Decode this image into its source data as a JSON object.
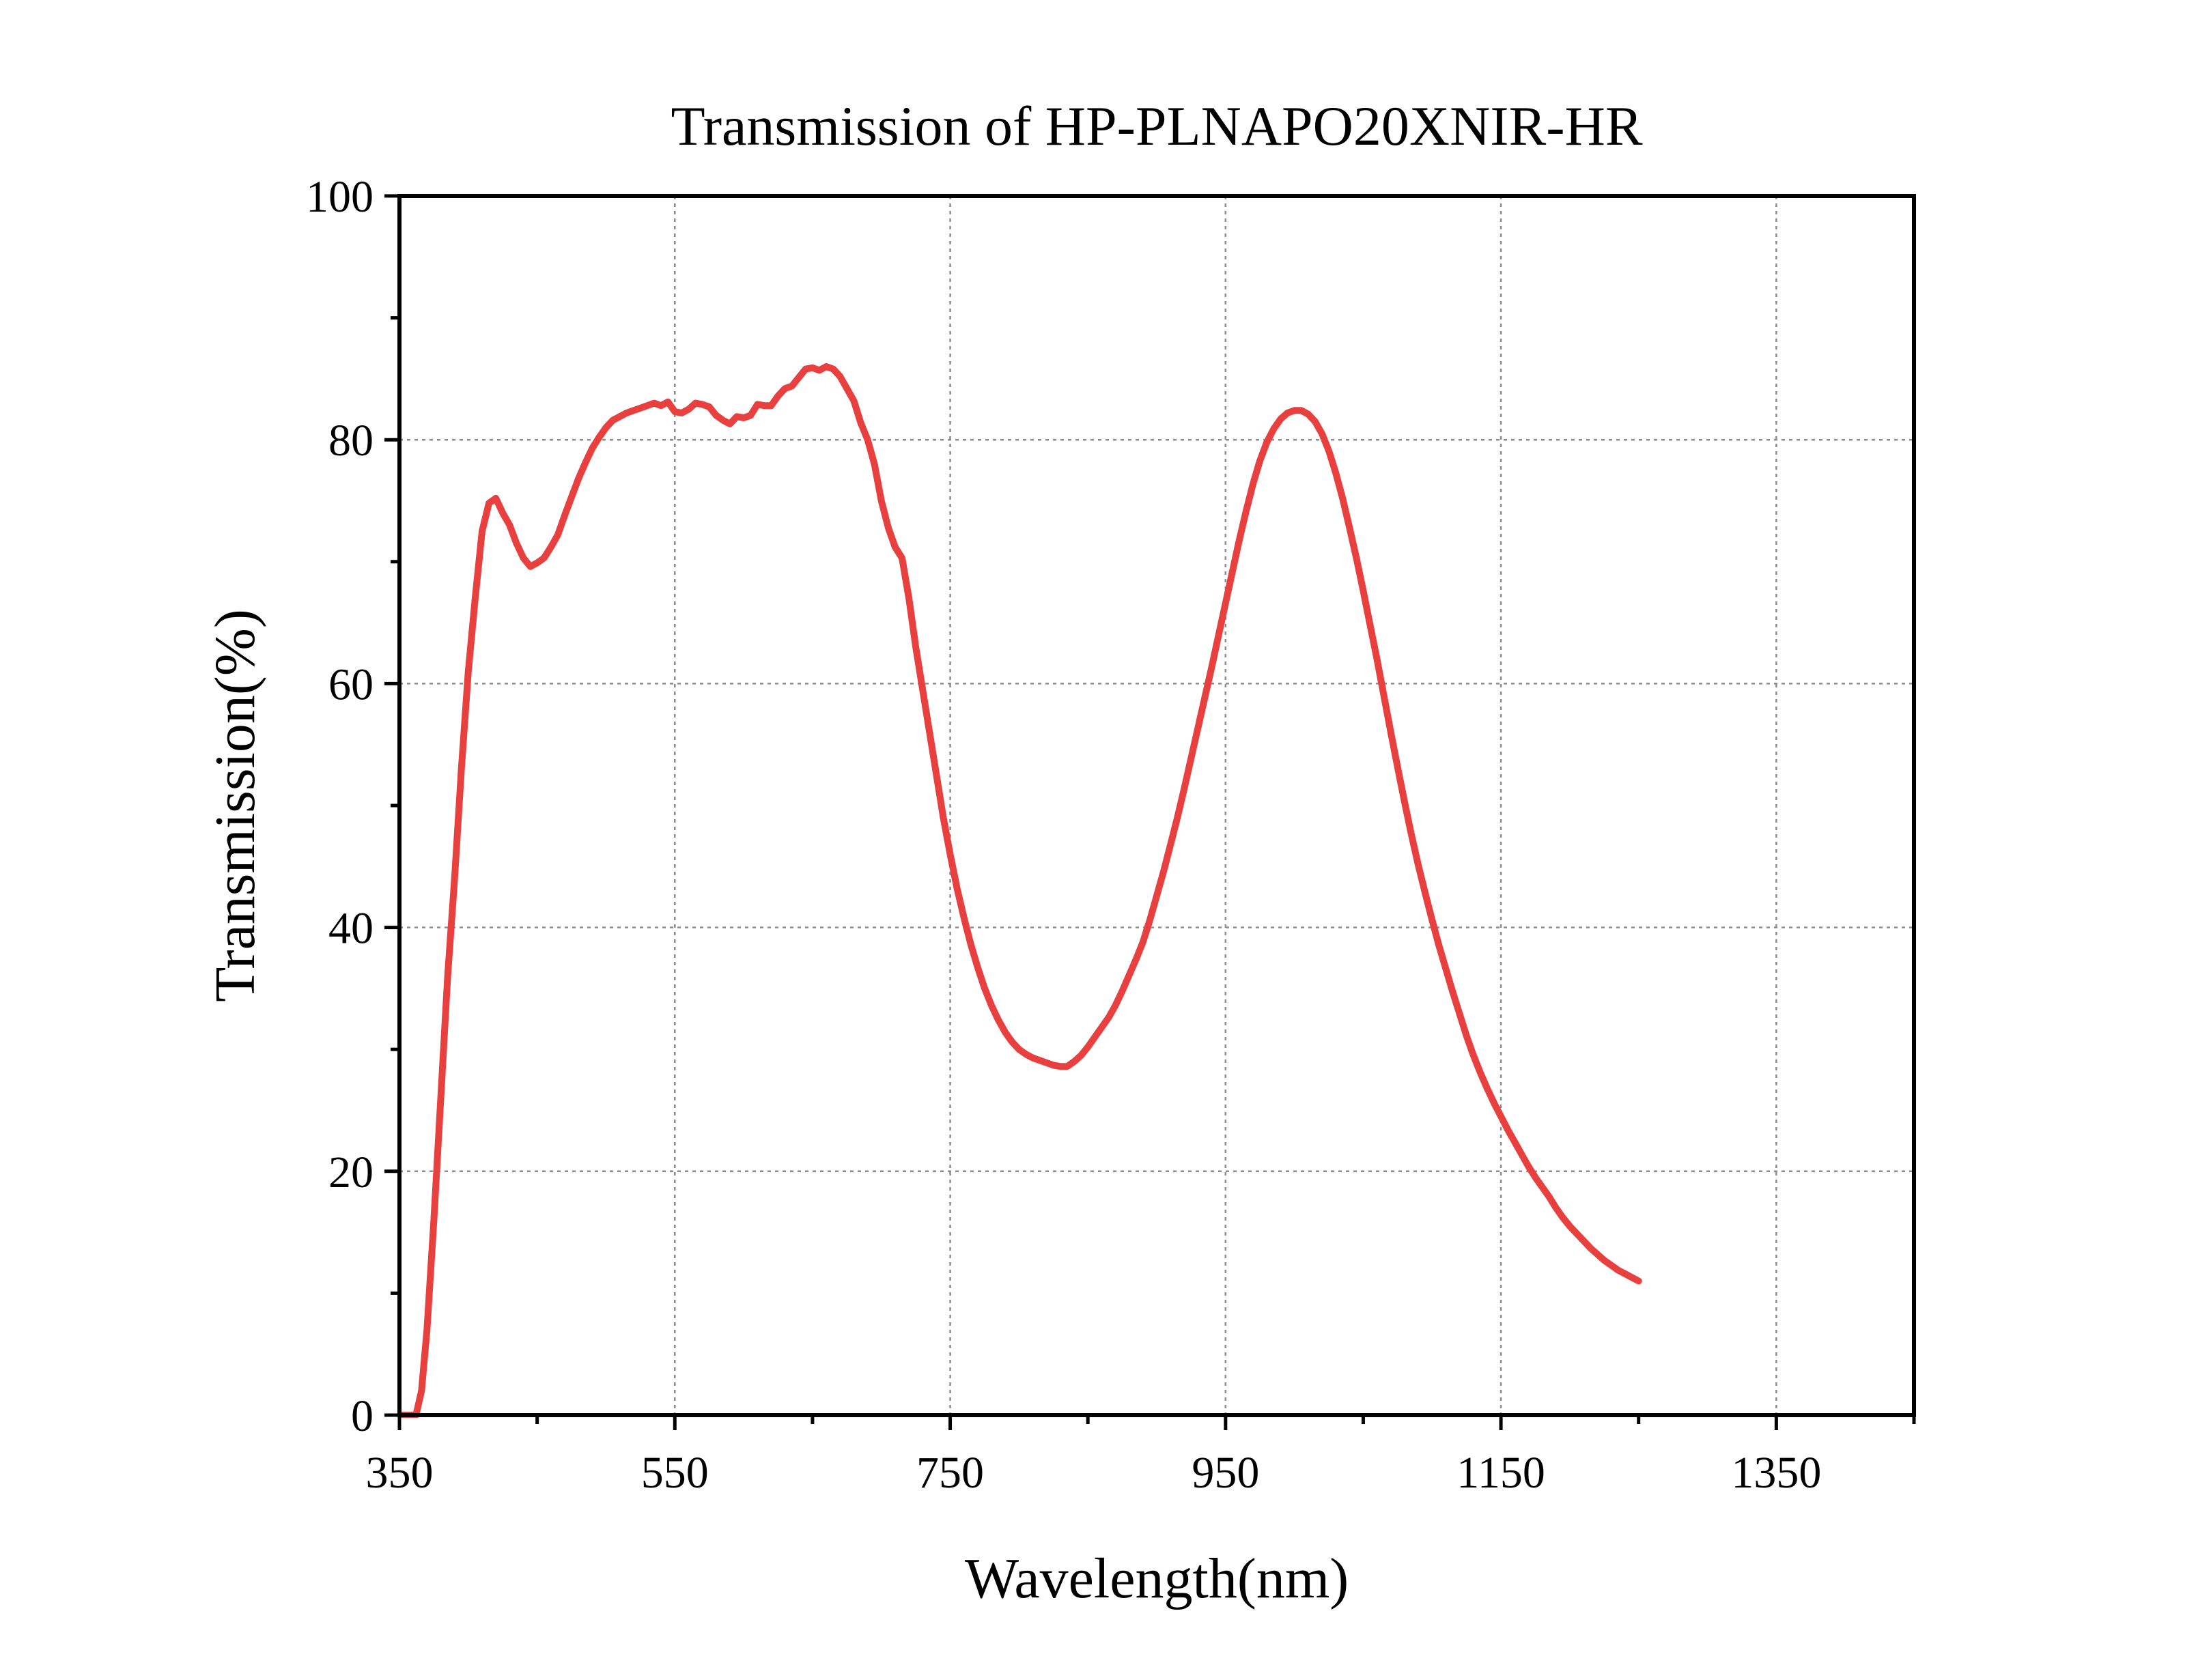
{
  "chart_data": {
    "type": "line",
    "title": "Transmission of HP-PLNAPO20XNIR-HR",
    "xlabel": "Wavelength(nm)",
    "ylabel": "Transmission(%)",
    "xlim": [
      350,
      1450
    ],
    "ylim": [
      0,
      100
    ],
    "xticks": [
      350,
      550,
      750,
      950,
      1150,
      1350
    ],
    "xticks_minor": [
      450,
      650,
      850,
      1050,
      1250,
      1450
    ],
    "yticks": [
      0,
      20,
      40,
      60,
      80,
      100
    ],
    "yticks_minor": [
      10,
      30,
      50,
      70,
      90
    ],
    "grid": true,
    "legend": "none",
    "series": [
      {
        "color": "#e8403e",
        "points": [
          [
            350,
            0
          ],
          [
            362,
            0
          ],
          [
            366,
            2
          ],
          [
            370,
            7
          ],
          [
            375,
            16
          ],
          [
            380,
            26
          ],
          [
            385,
            36
          ],
          [
            390,
            44
          ],
          [
            395,
            53
          ],
          [
            400,
            61
          ],
          [
            405,
            67
          ],
          [
            410,
            72.5
          ],
          [
            415,
            74.8
          ],
          [
            420,
            75.2
          ],
          [
            425,
            74
          ],
          [
            430,
            73
          ],
          [
            435,
            71.5
          ],
          [
            440,
            70.3
          ],
          [
            445,
            69.6
          ],
          [
            450,
            69.9
          ],
          [
            455,
            70.3
          ],
          [
            460,
            71.2
          ],
          [
            465,
            72.2
          ],
          [
            470,
            73.8
          ],
          [
            475,
            75.3
          ],
          [
            480,
            76.8
          ],
          [
            485,
            78.1
          ],
          [
            490,
            79.3
          ],
          [
            495,
            80.2
          ],
          [
            500,
            81
          ],
          [
            505,
            81.6
          ],
          [
            510,
            81.9
          ],
          [
            515,
            82.2
          ],
          [
            520,
            82.4
          ],
          [
            525,
            82.6
          ],
          [
            530,
            82.8
          ],
          [
            535,
            83
          ],
          [
            540,
            82.8
          ],
          [
            545,
            83.1
          ],
          [
            550,
            82.3
          ],
          [
            555,
            82.2
          ],
          [
            560,
            82.5
          ],
          [
            565,
            83
          ],
          [
            570,
            82.9
          ],
          [
            575,
            82.7
          ],
          [
            580,
            82
          ],
          [
            585,
            81.6
          ],
          [
            590,
            81.3
          ],
          [
            595,
            81.9
          ],
          [
            600,
            81.8
          ],
          [
            605,
            82
          ],
          [
            610,
            82.9
          ],
          [
            615,
            82.8
          ],
          [
            620,
            82.8
          ],
          [
            625,
            83.6
          ],
          [
            630,
            84.2
          ],
          [
            635,
            84.4
          ],
          [
            640,
            85.1
          ],
          [
            645,
            85.8
          ],
          [
            650,
            85.9
          ],
          [
            655,
            85.7
          ],
          [
            660,
            86
          ],
          [
            665,
            85.8
          ],
          [
            670,
            85.2
          ],
          [
            675,
            84.2
          ],
          [
            680,
            83.2
          ],
          [
            685,
            81.4
          ],
          [
            690,
            80
          ],
          [
            695,
            78
          ],
          [
            700,
            75
          ],
          [
            705,
            72.8
          ],
          [
            710,
            71.2
          ],
          [
            715,
            70.3
          ],
          [
            720,
            67
          ],
          [
            725,
            63
          ],
          [
            730,
            59.5
          ],
          [
            735,
            56
          ],
          [
            740,
            52.5
          ],
          [
            745,
            49
          ],
          [
            750,
            46
          ],
          [
            755,
            43.2
          ],
          [
            760,
            40.8
          ],
          [
            765,
            38.6
          ],
          [
            770,
            36.7
          ],
          [
            775,
            35
          ],
          [
            780,
            33.6
          ],
          [
            785,
            32.4
          ],
          [
            790,
            31.4
          ],
          [
            795,
            30.6
          ],
          [
            800,
            30
          ],
          [
            805,
            29.6
          ],
          [
            810,
            29.3
          ],
          [
            815,
            29.1
          ],
          [
            820,
            28.9
          ],
          [
            825,
            28.7
          ],
          [
            830,
            28.6
          ],
          [
            835,
            28.6
          ],
          [
            840,
            29
          ],
          [
            845,
            29.5
          ],
          [
            850,
            30.2
          ],
          [
            855,
            31
          ],
          [
            860,
            31.8
          ],
          [
            865,
            32.6
          ],
          [
            870,
            33.6
          ],
          [
            875,
            34.8
          ],
          [
            880,
            36.1
          ],
          [
            885,
            37.4
          ],
          [
            890,
            38.8
          ],
          [
            895,
            40.6
          ],
          [
            900,
            42.6
          ],
          [
            905,
            44.6
          ],
          [
            910,
            46.8
          ],
          [
            915,
            49
          ],
          [
            920,
            51.4
          ],
          [
            925,
            53.9
          ],
          [
            930,
            56.4
          ],
          [
            935,
            58.9
          ],
          [
            940,
            61.4
          ],
          [
            945,
            64
          ],
          [
            950,
            66.6
          ],
          [
            955,
            69.2
          ],
          [
            960,
            71.8
          ],
          [
            965,
            74.2
          ],
          [
            970,
            76.4
          ],
          [
            975,
            78.3
          ],
          [
            980,
            79.8
          ],
          [
            985,
            80.9
          ],
          [
            990,
            81.7
          ],
          [
            995,
            82.2
          ],
          [
            1000,
            82.4
          ],
          [
            1005,
            82.4
          ],
          [
            1010,
            82.1
          ],
          [
            1015,
            81.5
          ],
          [
            1020,
            80.5
          ],
          [
            1025,
            79.1
          ],
          [
            1030,
            77.3
          ],
          [
            1035,
            75.2
          ],
          [
            1040,
            72.8
          ],
          [
            1045,
            70.3
          ],
          [
            1050,
            67.6
          ],
          [
            1055,
            64.8
          ],
          [
            1060,
            62
          ],
          [
            1065,
            59
          ],
          [
            1070,
            56
          ],
          [
            1075,
            53.1
          ],
          [
            1080,
            50.3
          ],
          [
            1085,
            47.6
          ],
          [
            1090,
            45.1
          ],
          [
            1095,
            42.8
          ],
          [
            1100,
            40.6
          ],
          [
            1105,
            38.5
          ],
          [
            1110,
            36.6
          ],
          [
            1115,
            34.7
          ],
          [
            1120,
            32.9
          ],
          [
            1125,
            31.1
          ],
          [
            1130,
            29.5
          ],
          [
            1135,
            28.1
          ],
          [
            1140,
            26.8
          ],
          [
            1145,
            25.6
          ],
          [
            1150,
            24.5
          ],
          [
            1155,
            23.4
          ],
          [
            1160,
            22.4
          ],
          [
            1165,
            21.4
          ],
          [
            1170,
            20.4
          ],
          [
            1175,
            19.5
          ],
          [
            1180,
            18.7
          ],
          [
            1185,
            17.9
          ],
          [
            1190,
            17
          ],
          [
            1195,
            16.2
          ],
          [
            1200,
            15.5
          ],
          [
            1205,
            14.9
          ],
          [
            1210,
            14.3
          ],
          [
            1215,
            13.7
          ],
          [
            1220,
            13.2
          ],
          [
            1225,
            12.7
          ],
          [
            1230,
            12.3
          ],
          [
            1235,
            11.9
          ],
          [
            1240,
            11.6
          ],
          [
            1245,
            11.3
          ],
          [
            1250,
            11
          ]
        ]
      }
    ]
  }
}
